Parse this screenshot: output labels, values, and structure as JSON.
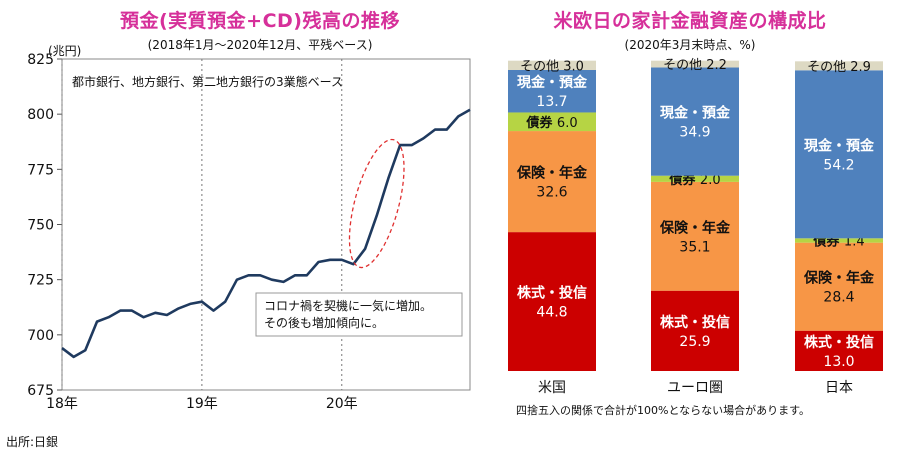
{
  "chart_data": [
    {
      "type": "line",
      "title": "預金(実質預金+CD)残高の推移",
      "subtitle": "(2018年1月～2020年12月、平残ベース)",
      "ylabel": "(兆円)",
      "ylim": [
        675,
        825
      ],
      "yticks": [
        675,
        700,
        725,
        750,
        775,
        800,
        825
      ],
      "x_ticks": [
        "18年",
        "19年",
        "20年"
      ],
      "annotation_top": "都市銀行、地方銀行、第二地方銀行の3業態ベース",
      "annotation_box": [
        "コロナ禍を契機に一気に増加。",
        "その後も増加傾向に。"
      ],
      "series": [
        {
          "values": [
            694,
            690,
            693,
            706,
            708,
            711,
            711,
            708,
            710,
            709,
            712,
            714,
            715,
            711,
            715,
            725,
            727,
            727,
            725,
            724,
            727,
            727,
            733,
            734,
            734,
            732,
            739,
            754,
            771,
            786,
            786,
            789,
            793,
            793,
            799,
            802
          ]
        }
      ],
      "color": "#1f3a5f",
      "source": "出所:日銀"
    },
    {
      "type": "bar",
      "stacked": true,
      "title": "米欧日の家計金融資産の構成比",
      "subtitle": "(2020年3月末時点、%)",
      "categories": [
        "米国",
        "ユーロ圏",
        "日本"
      ],
      "segments": [
        {
          "name": "株式・投信",
          "color": "#cc0000",
          "text_color": "#ffffff",
          "values": [
            44.8,
            25.9,
            13.0
          ]
        },
        {
          "name": "保険・年金",
          "color": "#f79646",
          "text_color": "#111111",
          "values": [
            32.6,
            35.1,
            28.4
          ]
        },
        {
          "name": "債券",
          "color": "#b6d444",
          "text_color": "#111111",
          "values": [
            6.0,
            2.0,
            1.4
          ]
        },
        {
          "name": "現金・預金",
          "color": "#4f81bd",
          "text_color": "#ffffff",
          "values": [
            13.7,
            34.9,
            54.2
          ]
        },
        {
          "name": "その他",
          "color": "#ddd9c3",
          "text_color": "#111111",
          "values": [
            3.0,
            2.2,
            2.9
          ]
        }
      ],
      "footnote": "四捨五入の関係で合計が100%とならない場合があります。"
    }
  ]
}
